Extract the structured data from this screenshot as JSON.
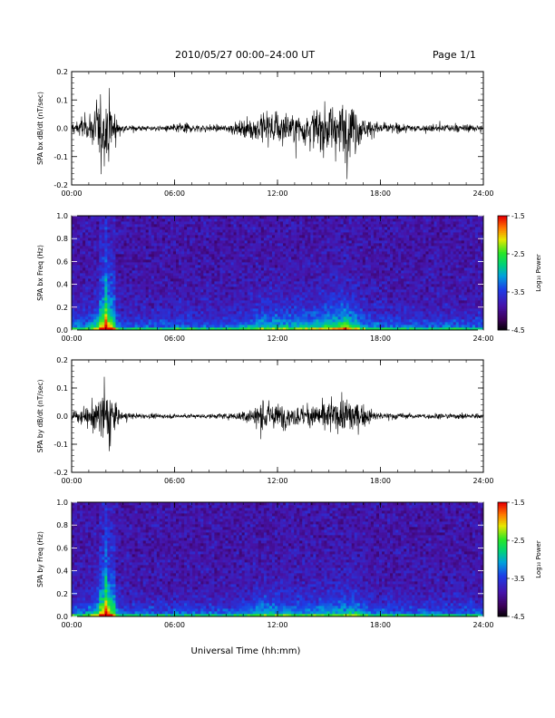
{
  "header": {
    "title": "2010/05/27  00:00–24:00 UT",
    "page": "Page 1/1"
  },
  "xaxis": {
    "label": "Universal Time (hh:mm)",
    "ticks": [
      "00:00",
      "06:00",
      "12:00",
      "18:00",
      "24:00"
    ]
  },
  "colorbar": {
    "label": "Log₁₀ Power",
    "ticks": [
      "-1.5",
      "-2.5",
      "-3.5",
      "-4.5"
    ],
    "range": [
      -4.5,
      -1.5
    ]
  },
  "chart_data": [
    {
      "type": "line",
      "ylabel": "SPA bx dB/dt (nT/sec)",
      "xlim": [
        0,
        24
      ],
      "ylim": [
        -0.2,
        0.2
      ],
      "yticks": [
        "0.2",
        "0.1",
        "0.0",
        "-0.1",
        "-0.2"
      ],
      "envelope": {
        "x": [
          0,
          0.5,
          1,
          1.5,
          1.8,
          2.0,
          2.2,
          2.5,
          2.8,
          3,
          4,
          5,
          6,
          6.5,
          7,
          8,
          9,
          9.5,
          10,
          11,
          12,
          13,
          14,
          15,
          15.5,
          16,
          16.5,
          17,
          18,
          19,
          20,
          22,
          24
        ],
        "y": [
          0.04,
          0.05,
          0.06,
          0.12,
          0.2,
          0.2,
          0.2,
          0.08,
          0.03,
          0.02,
          0.015,
          0.015,
          0.02,
          0.04,
          0.02,
          0.02,
          0.02,
          0.03,
          0.04,
          0.08,
          0.1,
          0.08,
          0.1,
          0.14,
          0.14,
          0.18,
          0.12,
          0.06,
          0.03,
          0.025,
          0.02,
          0.02,
          0.02
        ]
      }
    },
    {
      "type": "heatmap",
      "ylabel": "SPA bx Freq (Hz)",
      "xlim": [
        0,
        24
      ],
      "ylim": [
        0,
        1.0
      ],
      "yticks": [
        "1.0",
        "0.8",
        "0.6",
        "0.4",
        "0.2",
        "0.0"
      ]
    },
    {
      "type": "line",
      "ylabel": "SPA by dB/dt (nT/sec)",
      "xlim": [
        0,
        24
      ],
      "ylim": [
        -0.2,
        0.2
      ],
      "yticks": [
        "0.2",
        "0.1",
        "0.0",
        "-0.1",
        "-0.2"
      ],
      "envelope": {
        "x": [
          0,
          0.5,
          1,
          1.5,
          1.8,
          2.0,
          2.2,
          2.5,
          2.8,
          3,
          4,
          5,
          6,
          7,
          8,
          9,
          10,
          10.5,
          11,
          12,
          13,
          14,
          15,
          16,
          16.5,
          17,
          18,
          20,
          22,
          24
        ],
        "y": [
          0.04,
          0.04,
          0.05,
          0.12,
          0.18,
          0.2,
          0.2,
          0.08,
          0.03,
          0.02,
          0.012,
          0.012,
          0.012,
          0.012,
          0.012,
          0.015,
          0.03,
          0.05,
          0.08,
          0.07,
          0.05,
          0.06,
          0.08,
          0.09,
          0.1,
          0.05,
          0.02,
          0.015,
          0.015,
          0.015
        ]
      }
    },
    {
      "type": "heatmap",
      "ylabel": "SPA by Freq (Hz)",
      "xlim": [
        0,
        24
      ],
      "ylim": [
        0,
        1.0
      ],
      "yticks": [
        "1.0",
        "0.8",
        "0.6",
        "0.4",
        "0.2",
        "0.0"
      ]
    }
  ]
}
